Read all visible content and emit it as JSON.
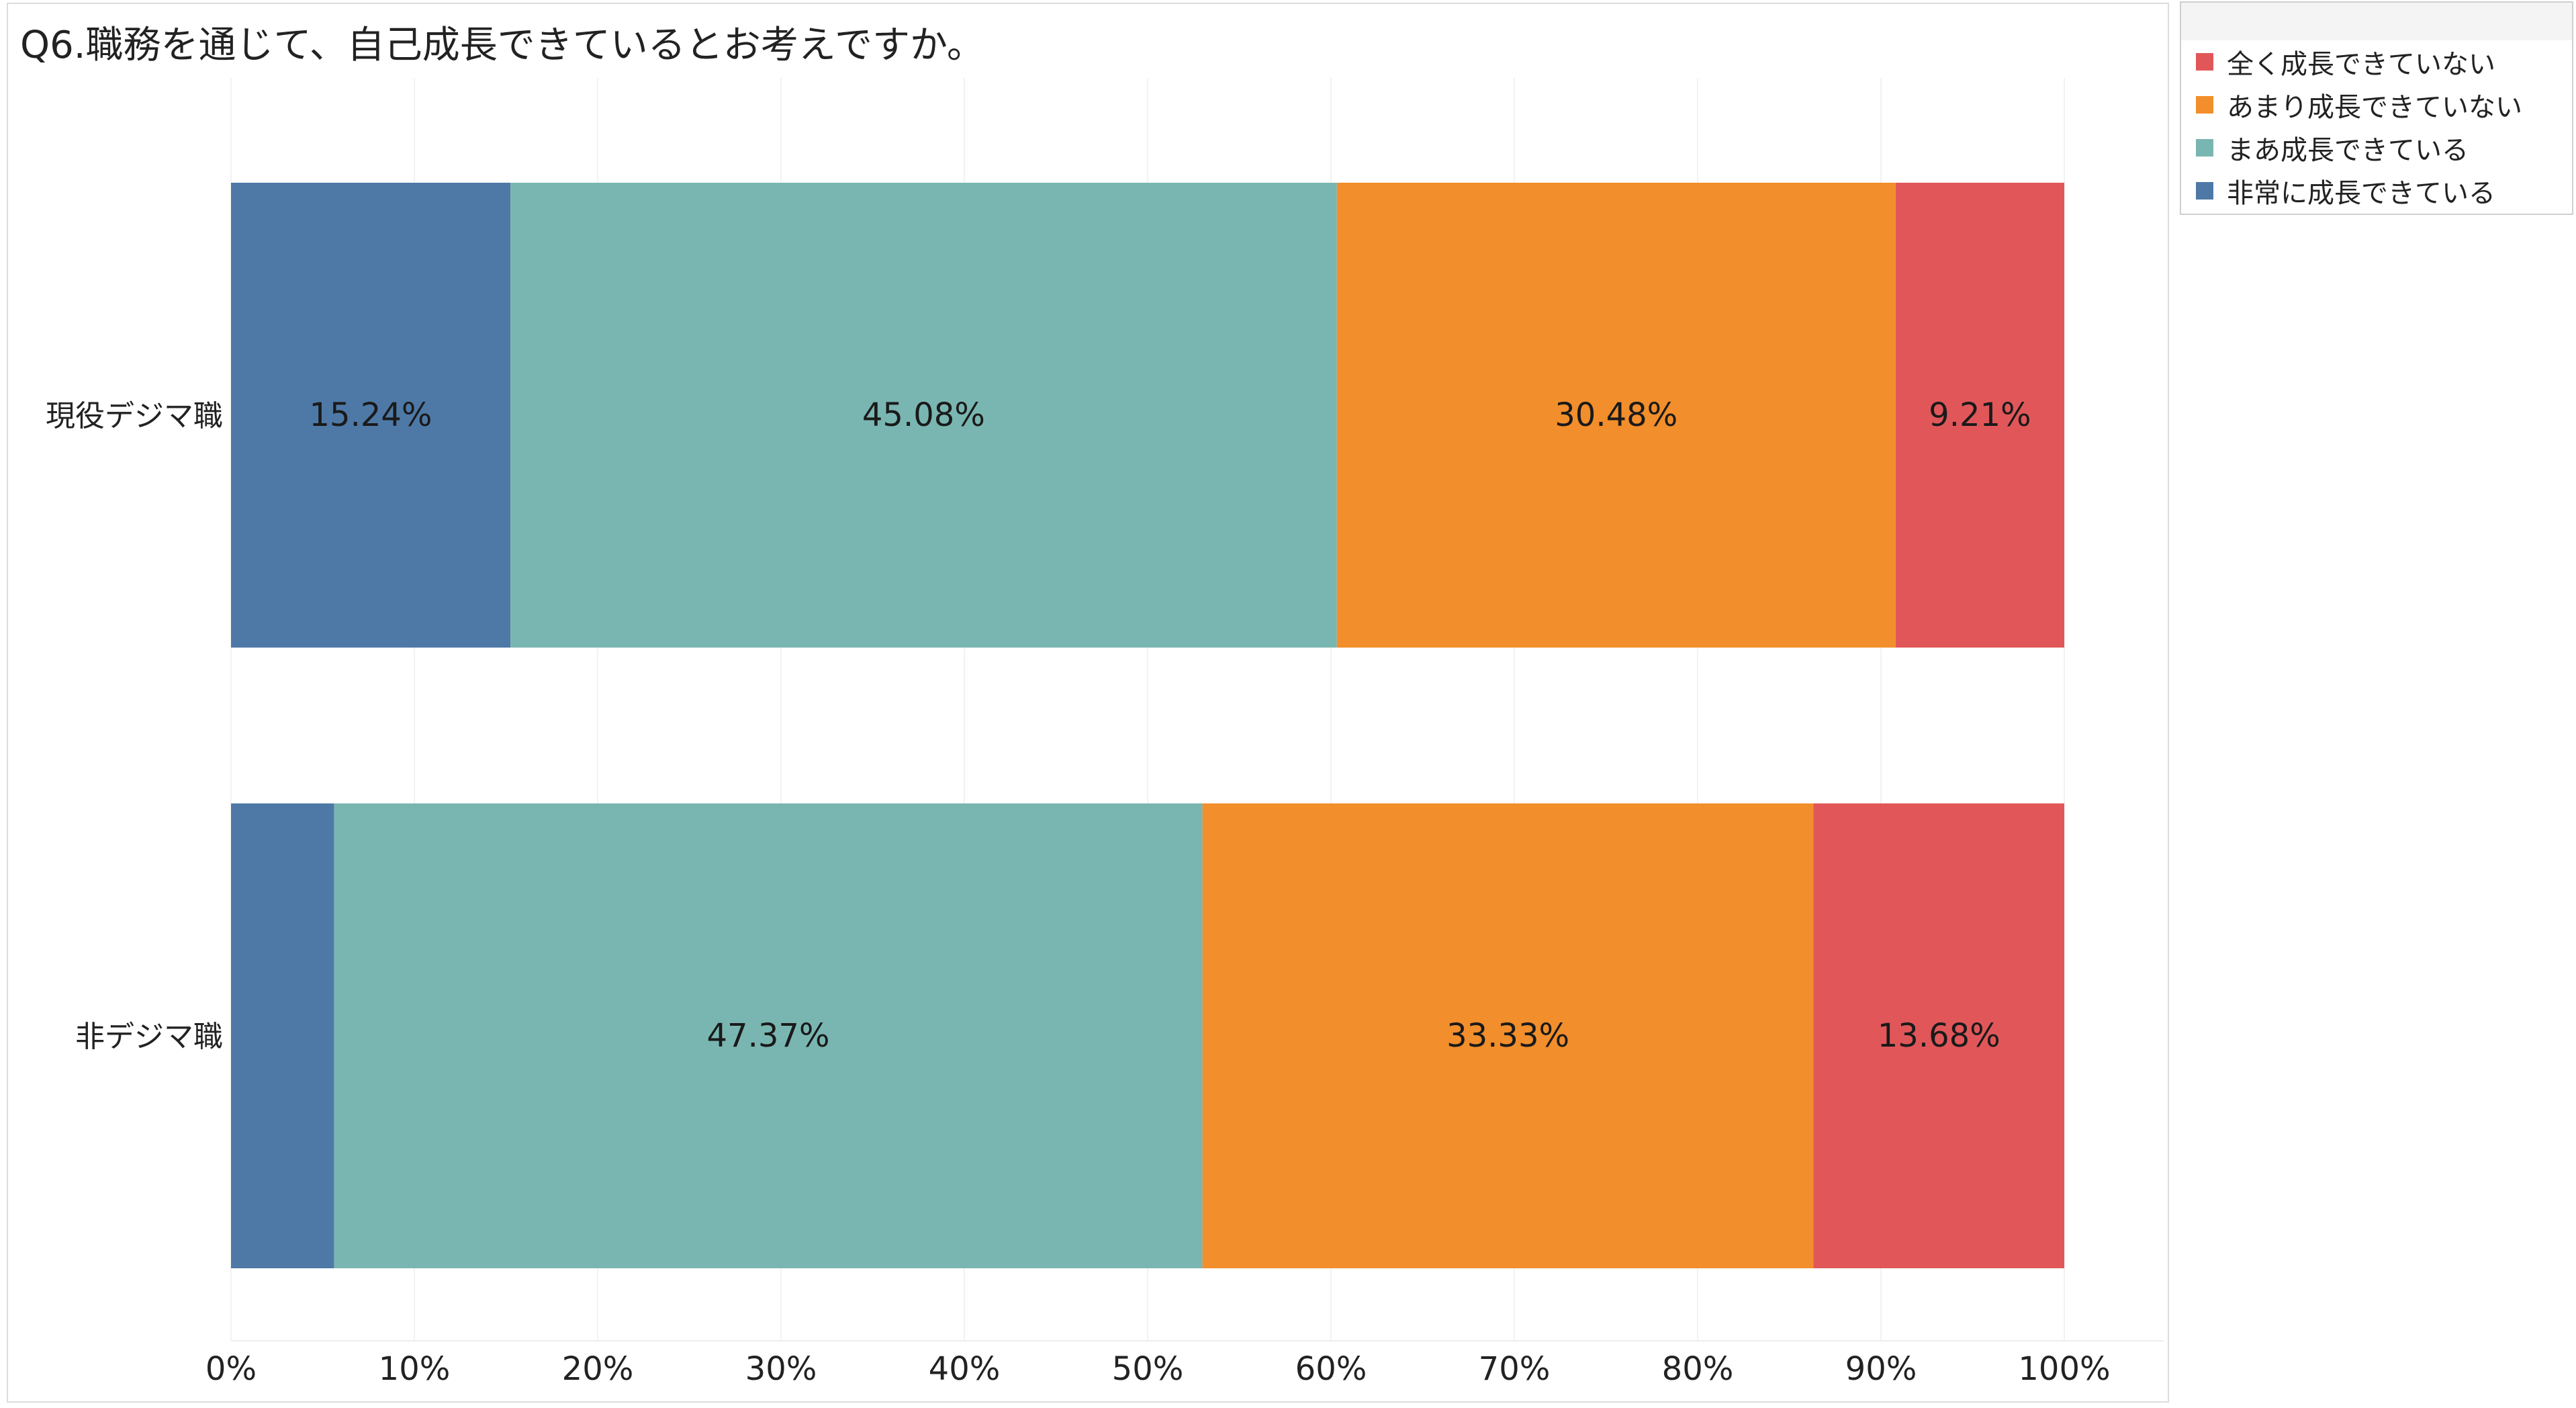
{
  "chart_data": {
    "type": "bar",
    "orientation": "horizontal",
    "stacked": true,
    "normalized_to_percent": true,
    "title": "Q6.職務を通じて、自己成長できているとお考えですか。",
    "xlabel": "",
    "ylabel": "",
    "xlim": [
      0,
      100
    ],
    "x_ticks": [
      "0%",
      "10%",
      "20%",
      "30%",
      "40%",
      "50%",
      "60%",
      "70%",
      "80%",
      "90%",
      "100%"
    ],
    "categories": [
      "現役デジマ職",
      "非デジマ職"
    ],
    "series": [
      {
        "name": "非常に成長できている",
        "color": "#4e79a7",
        "values": [
          15.24,
          5.62
        ],
        "labels": [
          "15.24%",
          ""
        ]
      },
      {
        "name": "まあ成長できている",
        "color": "#7ab6b1",
        "values": [
          45.08,
          47.37
        ],
        "labels": [
          "45.08%",
          "47.37%"
        ]
      },
      {
        "name": "あまり成長できていない",
        "color": "#f28e2b",
        "values": [
          30.48,
          33.33
        ],
        "labels": [
          "30.48%",
          "33.33%"
        ]
      },
      {
        "name": "全く成長できていない",
        "color": "#e15759",
        "values": [
          9.21,
          13.68
        ],
        "labels": [
          "9.21%",
          "13.68%"
        ]
      }
    ],
    "legend": {
      "position": "right-top",
      "order": [
        "全く成長できていない",
        "あまり成長できていない",
        "まあ成長できている",
        "非常に成長できている"
      ]
    },
    "grid": {
      "vertical": true,
      "horizontal": false,
      "color": "#f2f2f2"
    }
  }
}
